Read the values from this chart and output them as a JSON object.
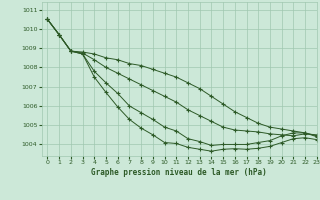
{
  "title": "Graphe pression niveau de la mer (hPa)",
  "background_color": "#cce8d8",
  "grid_color": "#a0c8b0",
  "line_color": "#2d5a27",
  "xlim": [
    -0.5,
    23
  ],
  "ylim": [
    1003.4,
    1011.4
  ],
  "yticks": [
    1004,
    1005,
    1006,
    1007,
    1008,
    1009,
    1010,
    1011
  ],
  "xticks": [
    0,
    1,
    2,
    3,
    4,
    5,
    6,
    7,
    8,
    9,
    10,
    11,
    12,
    13,
    14,
    15,
    16,
    17,
    18,
    19,
    20,
    21,
    22,
    23
  ],
  "series": [
    [
      1010.5,
      1009.7,
      1008.85,
      1008.8,
      1008.7,
      1008.5,
      1008.4,
      1008.2,
      1008.1,
      1007.9,
      1007.7,
      1007.5,
      1007.2,
      1006.9,
      1006.5,
      1006.1,
      1005.7,
      1005.4,
      1005.1,
      1004.9,
      1004.8,
      1004.7,
      1004.6,
      1004.4
    ],
    [
      1010.5,
      1009.7,
      1008.85,
      1008.75,
      1008.4,
      1008.0,
      1007.7,
      1007.4,
      1007.1,
      1006.8,
      1006.5,
      1006.2,
      1005.8,
      1005.5,
      1005.2,
      1004.9,
      1004.75,
      1004.7,
      1004.65,
      1004.55,
      1004.5,
      1004.45,
      1004.55,
      1004.5
    ],
    [
      1010.5,
      1009.7,
      1008.85,
      1008.7,
      1007.8,
      1007.2,
      1006.65,
      1006.0,
      1005.65,
      1005.3,
      1004.9,
      1004.7,
      1004.3,
      1004.15,
      1003.95,
      1004.0,
      1004.0,
      1004.0,
      1004.1,
      1004.2,
      1004.45,
      1004.6,
      1004.6,
      1004.45
    ],
    [
      1010.5,
      1009.7,
      1008.85,
      1008.7,
      1007.5,
      1006.7,
      1005.95,
      1005.3,
      1004.85,
      1004.5,
      1004.1,
      1004.05,
      1003.85,
      1003.75,
      1003.65,
      1003.75,
      1003.78,
      1003.75,
      1003.8,
      1003.9,
      1004.1,
      1004.3,
      1004.35,
      1004.25
    ]
  ]
}
